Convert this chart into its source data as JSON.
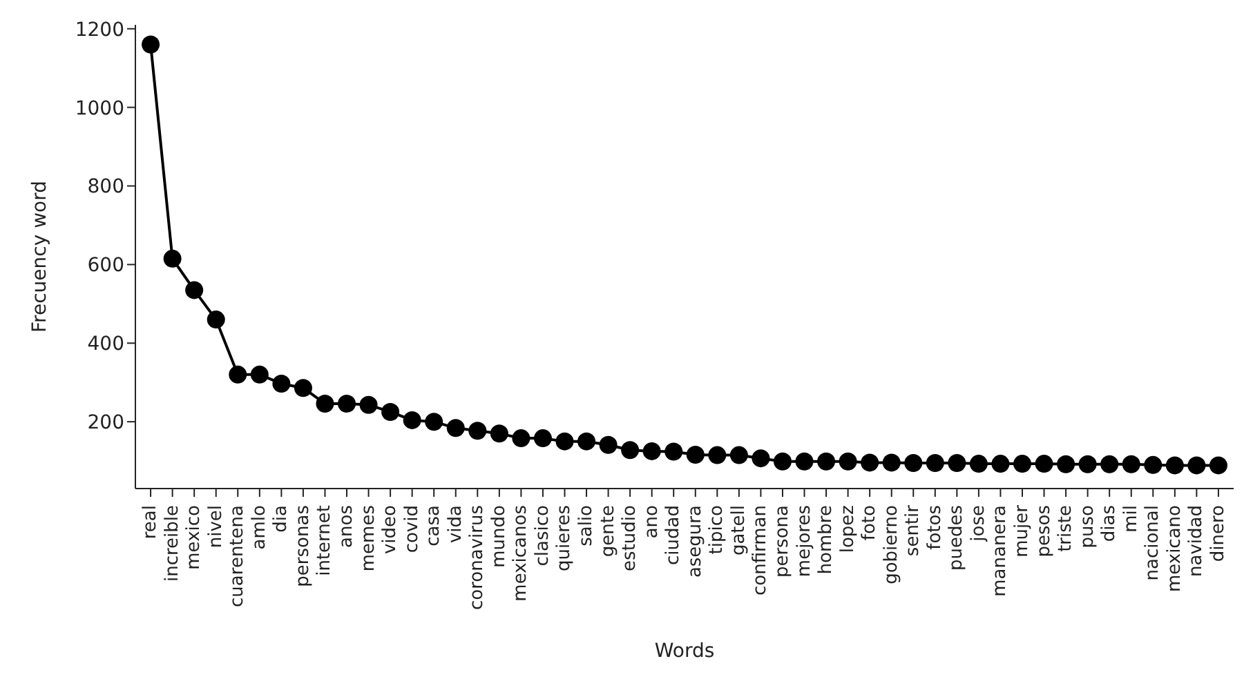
{
  "chart_data": {
    "type": "line",
    "xlabel": "Words",
    "ylabel": "Frecuency word",
    "categories": [
      "real",
      "increible",
      "mexico",
      "nivel",
      "cuarentena",
      "amlo",
      "dia",
      "personas",
      "internet",
      "anos",
      "memes",
      "video",
      "covid",
      "casa",
      "vida",
      "coronavirus",
      "mundo",
      "mexicanos",
      "clasico",
      "quieres",
      "salio",
      "gente",
      "estudio",
      "ano",
      "ciudad",
      "asegura",
      "tipico",
      "gatell",
      "confirman",
      "persona",
      "mejores",
      "hombre",
      "lopez",
      "foto",
      "gobierno",
      "sentir",
      "fotos",
      "puedes",
      "jose",
      "mananera",
      "mujer",
      "pesos",
      "triste",
      "puso",
      "dias",
      "mil",
      "nacional",
      "mexicano",
      "navidad",
      "dinero"
    ],
    "series": [
      {
        "color": "#000000",
        "values": [
          1160,
          615,
          535,
          460,
          320,
          320,
          297,
          286,
          246,
          246,
          243,
          225,
          204,
          200,
          184,
          177,
          170,
          158,
          158,
          150,
          150,
          141,
          128,
          125,
          124,
          116,
          115,
          115,
          107,
          99,
          99,
          99,
          99,
          96,
          96,
          95,
          95,
          95,
          93,
          93,
          93,
          93,
          92,
          92,
          92,
          92,
          90,
          89,
          89,
          89
        ]
      }
    ],
    "ylim": [
      30,
      1210
    ],
    "yticks": [
      200,
      400,
      600,
      800,
      1000,
      1200
    ],
    "grid": false,
    "legend": false,
    "marker": "circle",
    "line_style": "solid"
  }
}
